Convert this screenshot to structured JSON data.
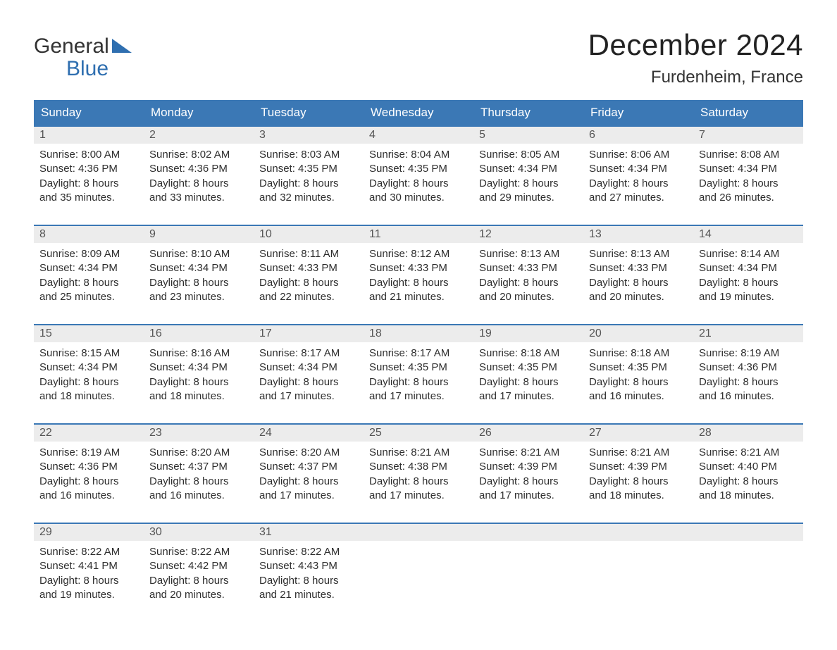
{
  "logo": {
    "text_general": "General",
    "text_blue": "Blue",
    "triangle_color": "#2f6fb0"
  },
  "header": {
    "month_title": "December 2024",
    "location": "Furdenheim, France"
  },
  "colors": {
    "header_bg": "#3b78b5",
    "header_text": "#ffffff",
    "daynum_bg": "#ececec",
    "daynum_text": "#555555",
    "body_text": "#2e2e2e",
    "cell_border": "#3b78b5",
    "page_bg": "#ffffff"
  },
  "typography": {
    "month_title_fontsize": 42,
    "location_fontsize": 24,
    "weekday_fontsize": 17,
    "daynum_fontsize": 16,
    "body_fontsize": 15,
    "font_family": "Arial"
  },
  "weekdays": [
    "Sunday",
    "Monday",
    "Tuesday",
    "Wednesday",
    "Thursday",
    "Friday",
    "Saturday"
  ],
  "labels": {
    "sunrise": "Sunrise:",
    "sunset": "Sunset:",
    "daylight": "Daylight:"
  },
  "weeks": [
    [
      {
        "n": "1",
        "sunrise": "8:00 AM",
        "sunset": "4:36 PM",
        "daylight": "8 hours and 35 minutes."
      },
      {
        "n": "2",
        "sunrise": "8:02 AM",
        "sunset": "4:36 PM",
        "daylight": "8 hours and 33 minutes."
      },
      {
        "n": "3",
        "sunrise": "8:03 AM",
        "sunset": "4:35 PM",
        "daylight": "8 hours and 32 minutes."
      },
      {
        "n": "4",
        "sunrise": "8:04 AM",
        "sunset": "4:35 PM",
        "daylight": "8 hours and 30 minutes."
      },
      {
        "n": "5",
        "sunrise": "8:05 AM",
        "sunset": "4:34 PM",
        "daylight": "8 hours and 29 minutes."
      },
      {
        "n": "6",
        "sunrise": "8:06 AM",
        "sunset": "4:34 PM",
        "daylight": "8 hours and 27 minutes."
      },
      {
        "n": "7",
        "sunrise": "8:08 AM",
        "sunset": "4:34 PM",
        "daylight": "8 hours and 26 minutes."
      }
    ],
    [
      {
        "n": "8",
        "sunrise": "8:09 AM",
        "sunset": "4:34 PM",
        "daylight": "8 hours and 25 minutes."
      },
      {
        "n": "9",
        "sunrise": "8:10 AM",
        "sunset": "4:34 PM",
        "daylight": "8 hours and 23 minutes."
      },
      {
        "n": "10",
        "sunrise": "8:11 AM",
        "sunset": "4:33 PM",
        "daylight": "8 hours and 22 minutes."
      },
      {
        "n": "11",
        "sunrise": "8:12 AM",
        "sunset": "4:33 PM",
        "daylight": "8 hours and 21 minutes."
      },
      {
        "n": "12",
        "sunrise": "8:13 AM",
        "sunset": "4:33 PM",
        "daylight": "8 hours and 20 minutes."
      },
      {
        "n": "13",
        "sunrise": "8:13 AM",
        "sunset": "4:33 PM",
        "daylight": "8 hours and 20 minutes."
      },
      {
        "n": "14",
        "sunrise": "8:14 AM",
        "sunset": "4:34 PM",
        "daylight": "8 hours and 19 minutes."
      }
    ],
    [
      {
        "n": "15",
        "sunrise": "8:15 AM",
        "sunset": "4:34 PM",
        "daylight": "8 hours and 18 minutes."
      },
      {
        "n": "16",
        "sunrise": "8:16 AM",
        "sunset": "4:34 PM",
        "daylight": "8 hours and 18 minutes."
      },
      {
        "n": "17",
        "sunrise": "8:17 AM",
        "sunset": "4:34 PM",
        "daylight": "8 hours and 17 minutes."
      },
      {
        "n": "18",
        "sunrise": "8:17 AM",
        "sunset": "4:35 PM",
        "daylight": "8 hours and 17 minutes."
      },
      {
        "n": "19",
        "sunrise": "8:18 AM",
        "sunset": "4:35 PM",
        "daylight": "8 hours and 17 minutes."
      },
      {
        "n": "20",
        "sunrise": "8:18 AM",
        "sunset": "4:35 PM",
        "daylight": "8 hours and 16 minutes."
      },
      {
        "n": "21",
        "sunrise": "8:19 AM",
        "sunset": "4:36 PM",
        "daylight": "8 hours and 16 minutes."
      }
    ],
    [
      {
        "n": "22",
        "sunrise": "8:19 AM",
        "sunset": "4:36 PM",
        "daylight": "8 hours and 16 minutes."
      },
      {
        "n": "23",
        "sunrise": "8:20 AM",
        "sunset": "4:37 PM",
        "daylight": "8 hours and 16 minutes."
      },
      {
        "n": "24",
        "sunrise": "8:20 AM",
        "sunset": "4:37 PM",
        "daylight": "8 hours and 17 minutes."
      },
      {
        "n": "25",
        "sunrise": "8:21 AM",
        "sunset": "4:38 PM",
        "daylight": "8 hours and 17 minutes."
      },
      {
        "n": "26",
        "sunrise": "8:21 AM",
        "sunset": "4:39 PM",
        "daylight": "8 hours and 17 minutes."
      },
      {
        "n": "27",
        "sunrise": "8:21 AM",
        "sunset": "4:39 PM",
        "daylight": "8 hours and 18 minutes."
      },
      {
        "n": "28",
        "sunrise": "8:21 AM",
        "sunset": "4:40 PM",
        "daylight": "8 hours and 18 minutes."
      }
    ],
    [
      {
        "n": "29",
        "sunrise": "8:22 AM",
        "sunset": "4:41 PM",
        "daylight": "8 hours and 19 minutes."
      },
      {
        "n": "30",
        "sunrise": "8:22 AM",
        "sunset": "4:42 PM",
        "daylight": "8 hours and 20 minutes."
      },
      {
        "n": "31",
        "sunrise": "8:22 AM",
        "sunset": "4:43 PM",
        "daylight": "8 hours and 21 minutes."
      },
      null,
      null,
      null,
      null
    ]
  ]
}
